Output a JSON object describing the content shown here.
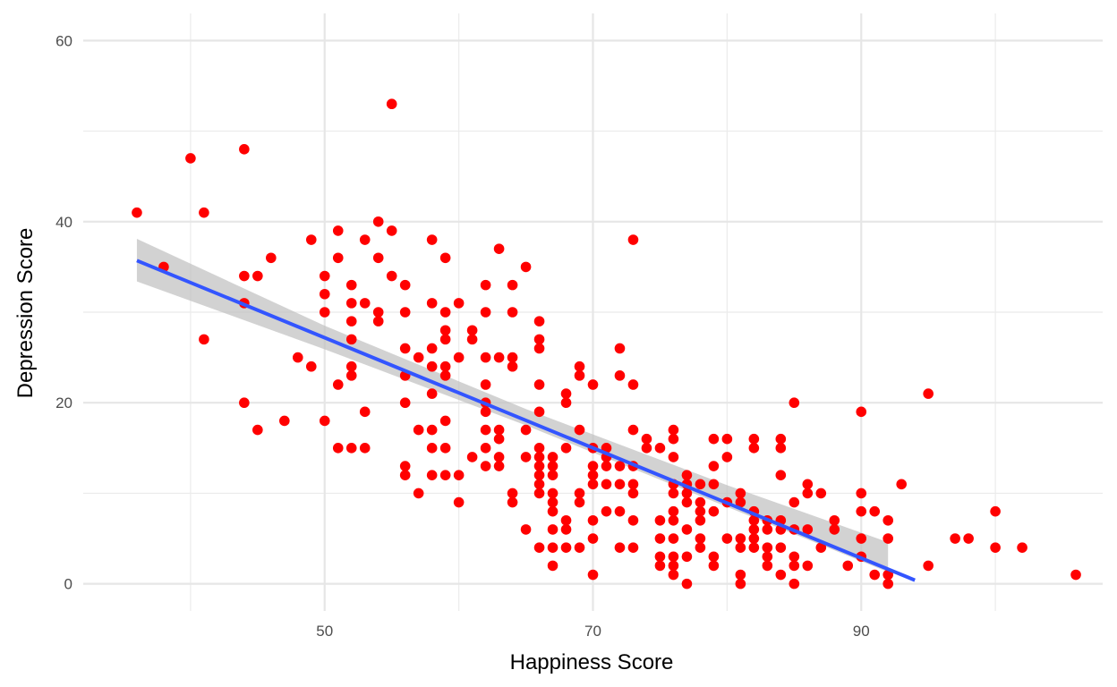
{
  "chart_data": {
    "type": "scatter",
    "title": "",
    "xlabel": "Happiness Score",
    "ylabel": "Depression Score",
    "xlim": [
      32,
      108
    ],
    "ylim": [
      -3,
      63
    ],
    "x_ticks": [
      50,
      70,
      90
    ],
    "y_ticks": [
      0,
      20,
      40,
      60
    ],
    "x_minor_ticks": [
      40,
      60,
      80,
      100
    ],
    "y_minor_ticks": [
      10,
      30,
      50
    ],
    "grid": true,
    "point_color": "#ff0000",
    "trend_color": "#3355ff",
    "band_color": "#bfbfbf",
    "trend_line": {
      "method": "linear",
      "from": [
        36,
        35.7
      ],
      "to": [
        94,
        0.4
      ]
    },
    "confidence_band": {
      "x": [
        36,
        50,
        65,
        80,
        92
      ],
      "lower": [
        33.4,
        25.9,
        17.5,
        8.5,
        1.3
      ],
      "upper": [
        38.1,
        28.5,
        19.3,
        10.9,
        4.6
      ]
    },
    "points": [
      [
        36,
        41
      ],
      [
        38,
        35
      ],
      [
        40,
        47
      ],
      [
        41,
        41
      ],
      [
        41,
        27
      ],
      [
        44,
        48
      ],
      [
        44,
        34
      ],
      [
        44,
        31
      ],
      [
        44,
        20
      ],
      [
        45,
        34
      ],
      [
        45,
        17
      ],
      [
        46,
        36
      ],
      [
        47,
        18
      ],
      [
        48,
        25
      ],
      [
        49,
        38
      ],
      [
        49,
        24
      ],
      [
        50,
        34
      ],
      [
        50,
        32
      ],
      [
        50,
        30
      ],
      [
        50,
        18
      ],
      [
        51,
        39
      ],
      [
        51,
        36
      ],
      [
        51,
        22
      ],
      [
        51,
        15
      ],
      [
        52,
        33
      ],
      [
        52,
        31
      ],
      [
        52,
        29
      ],
      [
        52,
        27
      ],
      [
        52,
        24
      ],
      [
        52,
        23
      ],
      [
        52,
        15
      ],
      [
        53,
        38
      ],
      [
        53,
        31
      ],
      [
        53,
        19
      ],
      [
        53,
        15
      ],
      [
        54,
        40
      ],
      [
        54,
        36
      ],
      [
        54,
        30
      ],
      [
        54,
        29
      ],
      [
        55,
        53
      ],
      [
        55,
        39
      ],
      [
        55,
        34
      ],
      [
        56,
        33
      ],
      [
        56,
        30
      ],
      [
        56,
        26
      ],
      [
        56,
        23
      ],
      [
        56,
        20
      ],
      [
        56,
        13
      ],
      [
        56,
        12
      ],
      [
        57,
        25
      ],
      [
        57,
        17
      ],
      [
        57,
        10
      ],
      [
        58,
        38
      ],
      [
        58,
        31
      ],
      [
        58,
        26
      ],
      [
        58,
        24
      ],
      [
        58,
        21
      ],
      [
        58,
        17
      ],
      [
        58,
        15
      ],
      [
        58,
        12
      ],
      [
        59,
        36
      ],
      [
        59,
        30
      ],
      [
        59,
        28
      ],
      [
        59,
        27
      ],
      [
        59,
        24
      ],
      [
        59,
        23
      ],
      [
        59,
        18
      ],
      [
        59,
        15
      ],
      [
        59,
        12
      ],
      [
        60,
        31
      ],
      [
        60,
        25
      ],
      [
        60,
        12
      ],
      [
        60,
        9
      ],
      [
        61,
        28
      ],
      [
        61,
        27
      ],
      [
        61,
        14
      ],
      [
        62,
        33
      ],
      [
        62,
        30
      ],
      [
        62,
        25
      ],
      [
        62,
        22
      ],
      [
        62,
        20
      ],
      [
        62,
        19
      ],
      [
        62,
        17
      ],
      [
        62,
        15
      ],
      [
        62,
        13
      ],
      [
        63,
        37
      ],
      [
        63,
        25
      ],
      [
        63,
        17
      ],
      [
        63,
        16
      ],
      [
        63,
        14
      ],
      [
        63,
        13
      ],
      [
        64,
        33
      ],
      [
        64,
        30
      ],
      [
        64,
        25
      ],
      [
        64,
        24
      ],
      [
        64,
        10
      ],
      [
        64,
        9
      ],
      [
        65,
        35
      ],
      [
        65,
        17
      ],
      [
        65,
        14
      ],
      [
        65,
        6
      ],
      [
        66,
        29
      ],
      [
        66,
        27
      ],
      [
        66,
        26
      ],
      [
        66,
        22
      ],
      [
        66,
        19
      ],
      [
        66,
        15
      ],
      [
        66,
        14
      ],
      [
        66,
        13
      ],
      [
        66,
        12
      ],
      [
        66,
        11
      ],
      [
        66,
        10
      ],
      [
        66,
        4
      ],
      [
        67,
        14
      ],
      [
        67,
        13
      ],
      [
        67,
        12
      ],
      [
        67,
        10
      ],
      [
        67,
        9
      ],
      [
        67,
        8
      ],
      [
        67,
        6
      ],
      [
        67,
        4
      ],
      [
        67,
        2
      ],
      [
        68,
        21
      ],
      [
        68,
        20
      ],
      [
        68,
        15
      ],
      [
        68,
        7
      ],
      [
        68,
        6
      ],
      [
        68,
        4
      ],
      [
        69,
        24
      ],
      [
        69,
        23
      ],
      [
        69,
        17
      ],
      [
        69,
        10
      ],
      [
        69,
        9
      ],
      [
        69,
        4
      ],
      [
        70,
        22
      ],
      [
        70,
        15
      ],
      [
        70,
        13
      ],
      [
        70,
        12
      ],
      [
        70,
        11
      ],
      [
        70,
        7
      ],
      [
        70,
        5
      ],
      [
        70,
        1
      ],
      [
        71,
        15
      ],
      [
        71,
        14
      ],
      [
        71,
        13
      ],
      [
        71,
        11
      ],
      [
        71,
        8
      ],
      [
        72,
        26
      ],
      [
        72,
        23
      ],
      [
        72,
        13
      ],
      [
        72,
        11
      ],
      [
        72,
        8
      ],
      [
        72,
        4
      ],
      [
        73,
        38
      ],
      [
        73,
        22
      ],
      [
        73,
        17
      ],
      [
        73,
        13
      ],
      [
        73,
        11
      ],
      [
        73,
        10
      ],
      [
        73,
        7
      ],
      [
        73,
        4
      ],
      [
        74,
        16
      ],
      [
        74,
        15
      ],
      [
        75,
        15
      ],
      [
        75,
        7
      ],
      [
        75,
        5
      ],
      [
        75,
        3
      ],
      [
        75,
        2
      ],
      [
        76,
        17
      ],
      [
        76,
        16
      ],
      [
        76,
        14
      ],
      [
        76,
        11
      ],
      [
        76,
        10
      ],
      [
        76,
        8
      ],
      [
        76,
        7
      ],
      [
        76,
        5
      ],
      [
        76,
        3
      ],
      [
        76,
        2
      ],
      [
        76,
        1
      ],
      [
        77,
        12
      ],
      [
        77,
        11
      ],
      [
        77,
        10
      ],
      [
        77,
        9
      ],
      [
        77,
        6
      ],
      [
        77,
        3
      ],
      [
        77,
        0
      ],
      [
        78,
        11
      ],
      [
        78,
        9
      ],
      [
        78,
        8
      ],
      [
        78,
        7
      ],
      [
        78,
        5
      ],
      [
        78,
        4
      ],
      [
        79,
        16
      ],
      [
        79,
        13
      ],
      [
        79,
        11
      ],
      [
        79,
        8
      ],
      [
        79,
        3
      ],
      [
        79,
        2
      ],
      [
        80,
        16
      ],
      [
        80,
        14
      ],
      [
        80,
        9
      ],
      [
        80,
        5
      ],
      [
        81,
        10
      ],
      [
        81,
        9
      ],
      [
        81,
        5
      ],
      [
        81,
        4
      ],
      [
        81,
        1
      ],
      [
        81,
        0
      ],
      [
        82,
        16
      ],
      [
        82,
        15
      ],
      [
        82,
        8
      ],
      [
        82,
        7
      ],
      [
        82,
        6
      ],
      [
        82,
        5
      ],
      [
        82,
        4
      ],
      [
        83,
        7
      ],
      [
        83,
        6
      ],
      [
        83,
        4
      ],
      [
        83,
        3
      ],
      [
        83,
        2
      ],
      [
        84,
        16
      ],
      [
        84,
        15
      ],
      [
        84,
        12
      ],
      [
        84,
        7
      ],
      [
        84,
        6
      ],
      [
        84,
        4
      ],
      [
        84,
        1
      ],
      [
        85,
        20
      ],
      [
        85,
        9
      ],
      [
        85,
        6
      ],
      [
        85,
        3
      ],
      [
        85,
        2
      ],
      [
        85,
        0
      ],
      [
        86,
        11
      ],
      [
        86,
        10
      ],
      [
        86,
        6
      ],
      [
        86,
        2
      ],
      [
        87,
        10
      ],
      [
        87,
        4
      ],
      [
        88,
        7
      ],
      [
        88,
        6
      ],
      [
        89,
        2
      ],
      [
        90,
        19
      ],
      [
        90,
        10
      ],
      [
        90,
        8
      ],
      [
        90,
        5
      ],
      [
        90,
        3
      ],
      [
        91,
        8
      ],
      [
        91,
        1
      ],
      [
        92,
        7
      ],
      [
        92,
        5
      ],
      [
        92,
        1
      ],
      [
        92,
        0
      ],
      [
        93,
        11
      ],
      [
        95,
        21
      ],
      [
        95,
        2
      ],
      [
        97,
        5
      ],
      [
        98,
        5
      ],
      [
        100,
        8
      ],
      [
        100,
        4
      ],
      [
        102,
        4
      ],
      [
        106,
        1
      ]
    ]
  }
}
